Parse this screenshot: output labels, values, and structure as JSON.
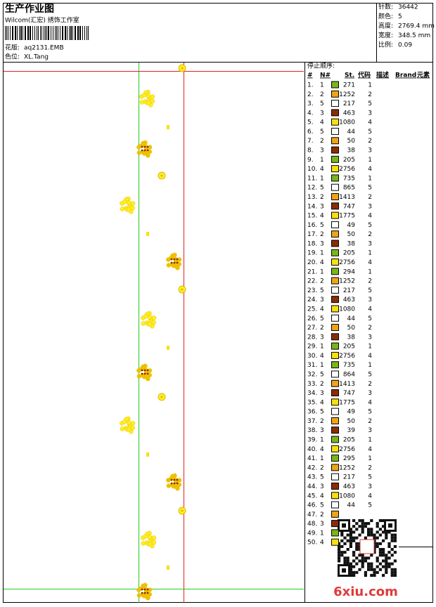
{
  "header": {
    "title": "生产作业图",
    "company": "Wilcom(汇宏) 绣饰工作室",
    "design_label": "花版:",
    "design": "aq2131.EMB",
    "colorway_label": "色位:",
    "colorway": "XL.Tang"
  },
  "info": [
    {
      "label": "针数:",
      "value": "36442"
    },
    {
      "label": "颜色:",
      "value": "5"
    },
    {
      "label": "高度:",
      "value": "2769.4 mm"
    },
    {
      "label": "宽度:",
      "value": "348.5 mm"
    },
    {
      "label": "比例:",
      "value": "0.09"
    }
  ],
  "table": {
    "caption": "停止顺序:",
    "columns": [
      "#",
      "N#",
      "St.",
      "代码",
      "描述",
      "Brand",
      "元素"
    ],
    "needle_colors": {
      "1": "#7ab51d",
      "2": "#f0a418",
      "3": "#8b2c06",
      "4": "#f7e011",
      "5": "#ffffff"
    },
    "rows": [
      [
        "1.",
        "1",
        271,
        1
      ],
      [
        "2.",
        "2",
        1252,
        2
      ],
      [
        "3.",
        "5",
        217,
        5
      ],
      [
        "4.",
        "3",
        463,
        3
      ],
      [
        "5.",
        "4",
        1080,
        4
      ],
      [
        "6.",
        "5",
        44,
        5
      ],
      [
        "7.",
        "2",
        50,
        2
      ],
      [
        "8.",
        "3",
        38,
        3
      ],
      [
        "9.",
        "1",
        205,
        1
      ],
      [
        "10.",
        "4",
        2756,
        4
      ],
      [
        "11.",
        "1",
        735,
        1
      ],
      [
        "12.",
        "5",
        865,
        5
      ],
      [
        "13.",
        "2",
        1413,
        2
      ],
      [
        "14.",
        "3",
        747,
        3
      ],
      [
        "15.",
        "4",
        1775,
        4
      ],
      [
        "16.",
        "5",
        49,
        5
      ],
      [
        "17.",
        "2",
        50,
        2
      ],
      [
        "18.",
        "3",
        38,
        3
      ],
      [
        "19.",
        "1",
        205,
        1
      ],
      [
        "20.",
        "4",
        2756,
        4
      ],
      [
        "21.",
        "1",
        294,
        1
      ],
      [
        "22.",
        "2",
        1252,
        2
      ],
      [
        "23.",
        "5",
        217,
        5
      ],
      [
        "24.",
        "3",
        463,
        3
      ],
      [
        "25.",
        "4",
        1080,
        4
      ],
      [
        "26.",
        "5",
        44,
        5
      ],
      [
        "27.",
        "2",
        50,
        2
      ],
      [
        "28.",
        "3",
        38,
        3
      ],
      [
        "29.",
        "1",
        205,
        1
      ],
      [
        "30.",
        "4",
        2756,
        4
      ],
      [
        "31.",
        "1",
        735,
        1
      ],
      [
        "32.",
        "5",
        864,
        5
      ],
      [
        "33.",
        "2",
        1413,
        2
      ],
      [
        "34.",
        "3",
        747,
        3
      ],
      [
        "35.",
        "4",
        1775,
        4
      ],
      [
        "36.",
        "5",
        49,
        5
      ],
      [
        "37.",
        "2",
        50,
        2
      ],
      [
        "38.",
        "3",
        39,
        3
      ],
      [
        "39.",
        "1",
        205,
        1
      ],
      [
        "40.",
        "4",
        2756,
        4
      ],
      [
        "41.",
        "1",
        295,
        1
      ],
      [
        "42.",
        "2",
        1252,
        2
      ],
      [
        "43.",
        "5",
        217,
        5
      ],
      [
        "44.",
        "3",
        463,
        3
      ],
      [
        "45.",
        "4",
        1080,
        4
      ],
      [
        "46.",
        "5",
        44,
        5
      ],
      [
        "47.",
        "2"
      ],
      [
        "48.",
        "3"
      ],
      [
        "49.",
        "1"
      ],
      [
        "50.",
        "4"
      ]
    ]
  },
  "watermark": "6xiu.com"
}
